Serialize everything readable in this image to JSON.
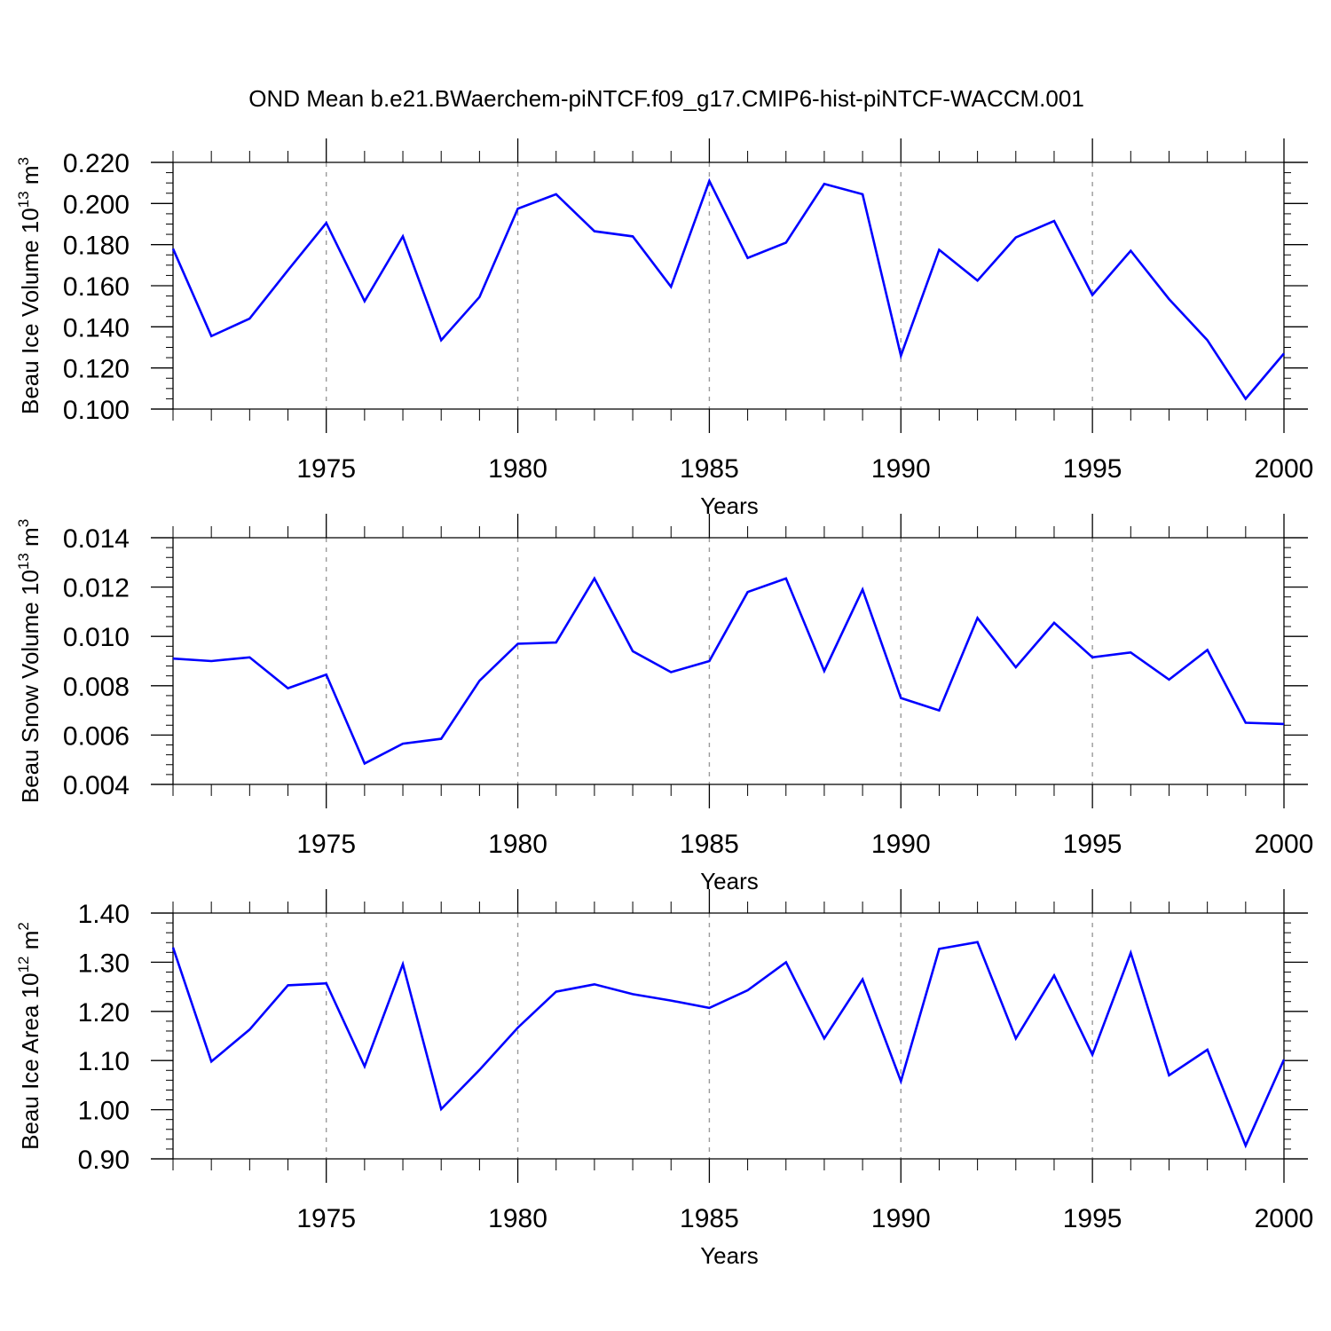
{
  "title": "OND Mean b.e21.BWaerchem-piNTCF.f09_g17.CMIP6-hist-piNTCF-WACCM.001",
  "colors": {
    "line": "#0000ff",
    "axis": "#000000",
    "grid": "#9a9a9a",
    "background": "#ffffff"
  },
  "chart_data": [
    {
      "type": "line",
      "ylabel_main": "Beau Ice Volume 10",
      "ylabel_exp": "13",
      "ylabel_unit": " m",
      "ylabel_unit_exp": "3",
      "xlabel": "Years",
      "xlim": [
        1971,
        2000
      ],
      "ylim": [
        0.1,
        0.22
      ],
      "yticks": [
        0.1,
        0.12,
        0.14,
        0.16,
        0.18,
        0.2,
        0.22
      ],
      "ytick_labels": [
        "0.100",
        "0.120",
        "0.140",
        "0.160",
        "0.180",
        "0.200",
        "0.220"
      ],
      "yminor_step": 0.005,
      "xticks": [
        1975,
        1980,
        1985,
        1990,
        1995,
        2000
      ],
      "xtick_labels": [
        "1975",
        "1980",
        "1985",
        "1990",
        "1995",
        "2000"
      ],
      "grid": "dashed vertical at major x ticks",
      "x": [
        1971,
        1972,
        1973,
        1974,
        1975,
        1976,
        1977,
        1978,
        1979,
        1980,
        1981,
        1982,
        1983,
        1984,
        1985,
        1986,
        1987,
        1988,
        1989,
        1990,
        1991,
        1992,
        1993,
        1994,
        1995,
        1996,
        1997,
        1998,
        1999,
        2000
      ],
      "values": [
        0.178,
        0.1355,
        0.144,
        0.1675,
        0.1905,
        0.1525,
        0.184,
        0.1335,
        0.1545,
        0.1975,
        0.2045,
        0.1865,
        0.184,
        0.1595,
        0.211,
        0.1735,
        0.181,
        0.2095,
        0.2045,
        0.126,
        0.1775,
        0.1625,
        0.1835,
        0.1915,
        0.1555,
        0.177,
        0.1535,
        0.1335,
        0.105,
        0.127
      ]
    },
    {
      "type": "line",
      "ylabel_main": "Beau Snow Volume 10",
      "ylabel_exp": "13",
      "ylabel_unit": " m",
      "ylabel_unit_exp": "3",
      "xlabel": "Years",
      "xlim": [
        1971,
        2000
      ],
      "ylim": [
        0.004,
        0.014
      ],
      "yticks": [
        0.004,
        0.006,
        0.008,
        0.01,
        0.012,
        0.014
      ],
      "ytick_labels": [
        "0.004",
        "0.006",
        "0.008",
        "0.010",
        "0.012",
        "0.014"
      ],
      "yminor_step": 0.0004,
      "xticks": [
        1975,
        1980,
        1985,
        1990,
        1995,
        2000
      ],
      "xtick_labels": [
        "1975",
        "1980",
        "1985",
        "1990",
        "1995",
        "2000"
      ],
      "grid": "dashed vertical at major x ticks",
      "x": [
        1971,
        1972,
        1973,
        1974,
        1975,
        1976,
        1977,
        1978,
        1979,
        1980,
        1981,
        1982,
        1983,
        1984,
        1985,
        1986,
        1987,
        1988,
        1989,
        1990,
        1991,
        1992,
        1993,
        1994,
        1995,
        1996,
        1997,
        1998,
        1999,
        2000
      ],
      "values": [
        0.0091,
        0.009,
        0.00915,
        0.0079,
        0.00845,
        0.00485,
        0.00565,
        0.00585,
        0.0082,
        0.0097,
        0.00975,
        0.01235,
        0.0094,
        0.00855,
        0.009,
        0.0118,
        0.01235,
        0.0086,
        0.0119,
        0.0075,
        0.007,
        0.01075,
        0.00875,
        0.01055,
        0.00915,
        0.00935,
        0.00825,
        0.00945,
        0.0065,
        0.00645
      ]
    },
    {
      "type": "line",
      "ylabel_main": "Beau Ice Area 10",
      "ylabel_exp": "12",
      "ylabel_unit": " m",
      "ylabel_unit_exp": "2",
      "xlabel": "Years",
      "xlim": [
        1971,
        2000
      ],
      "ylim": [
        0.9,
        1.4
      ],
      "yticks": [
        0.9,
        1.0,
        1.1,
        1.2,
        1.3,
        1.4
      ],
      "ytick_labels": [
        "0.90",
        "1.00",
        "1.10",
        "1.20",
        "1.30",
        "1.40"
      ],
      "yminor_step": 0.02,
      "xticks": [
        1975,
        1980,
        1985,
        1990,
        1995,
        2000
      ],
      "xtick_labels": [
        "1975",
        "1980",
        "1985",
        "1990",
        "1995",
        "2000"
      ],
      "grid": "dashed vertical at major x ticks",
      "x": [
        1971,
        1972,
        1973,
        1974,
        1975,
        1976,
        1977,
        1978,
        1979,
        1980,
        1981,
        1982,
        1983,
        1984,
        1985,
        1986,
        1987,
        1988,
        1989,
        1990,
        1991,
        1992,
        1993,
        1994,
        1995,
        1996,
        1997,
        1998,
        1999,
        2000
      ],
      "values": [
        1.33,
        1.098,
        1.163,
        1.253,
        1.257,
        1.088,
        1.296,
        1.001,
        1.081,
        1.167,
        1.24,
        1.255,
        1.235,
        1.222,
        1.207,
        1.243,
        1.3,
        1.145,
        1.265,
        1.058,
        1.327,
        1.341,
        1.145,
        1.273,
        1.112,
        1.319,
        1.07,
        1.122,
        0.927,
        1.102
      ]
    }
  ]
}
